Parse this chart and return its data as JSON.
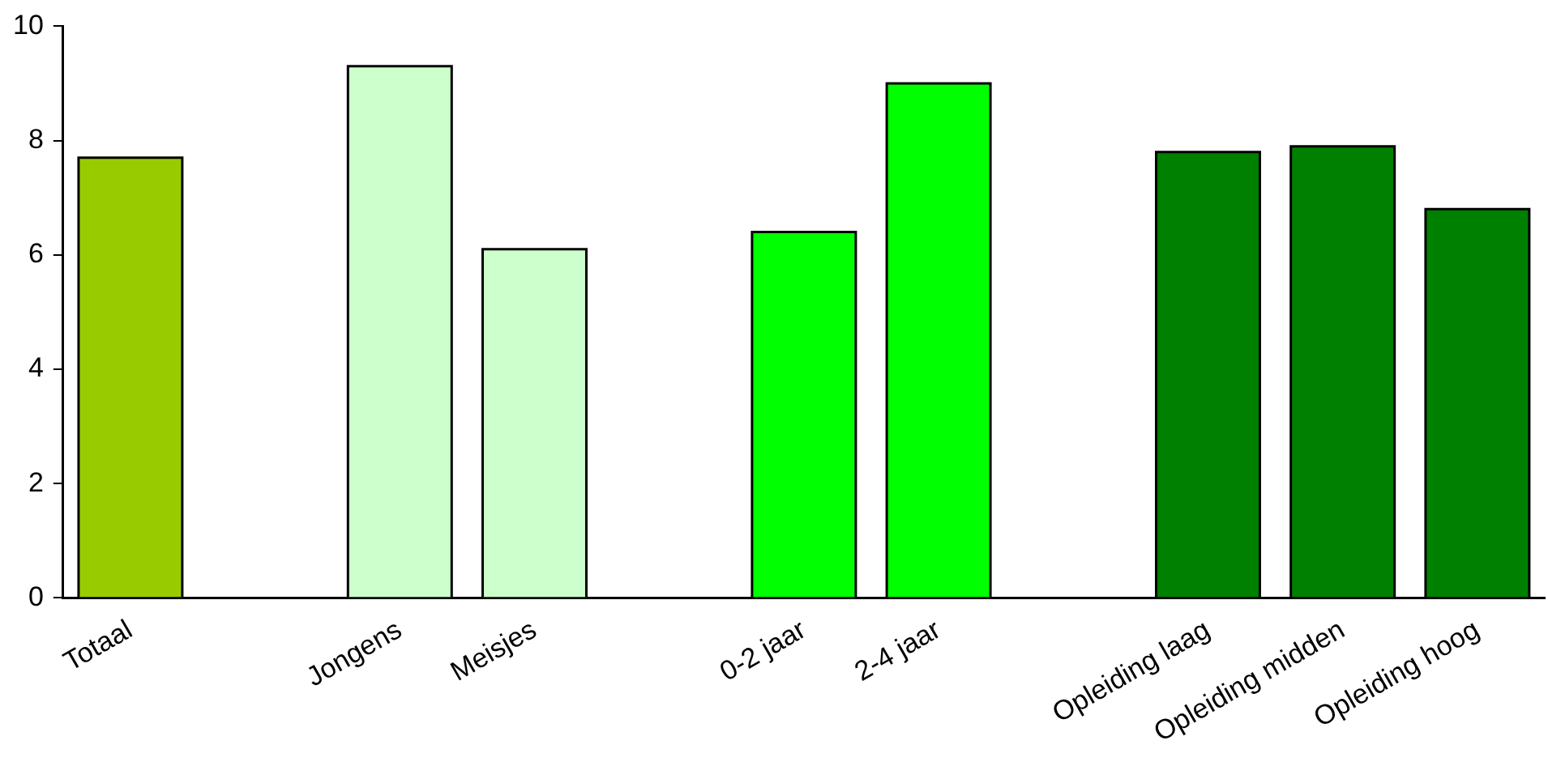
{
  "chart_data": {
    "type": "bar",
    "categories": [
      "Totaal",
      null,
      "Jongens",
      "Meisjes",
      null,
      "0-2 jaar",
      "2-4 jaar",
      null,
      "Opleiding laag",
      "Opleiding midden",
      "Opleiding hoog"
    ],
    "values": [
      7.7,
      null,
      9.3,
      6.1,
      null,
      6.4,
      9.0,
      null,
      7.8,
      7.9,
      6.8
    ],
    "colors": [
      "#99cc00",
      null,
      "#ccffcc",
      "#ccffcc",
      null,
      "#00ff00",
      "#00ff00",
      null,
      "#008000",
      "#008000",
      "#008000"
    ],
    "ylim": [
      0,
      10
    ],
    "yticks": [
      0,
      2,
      4,
      6,
      8,
      10
    ],
    "grid": false,
    "legend": false
  }
}
